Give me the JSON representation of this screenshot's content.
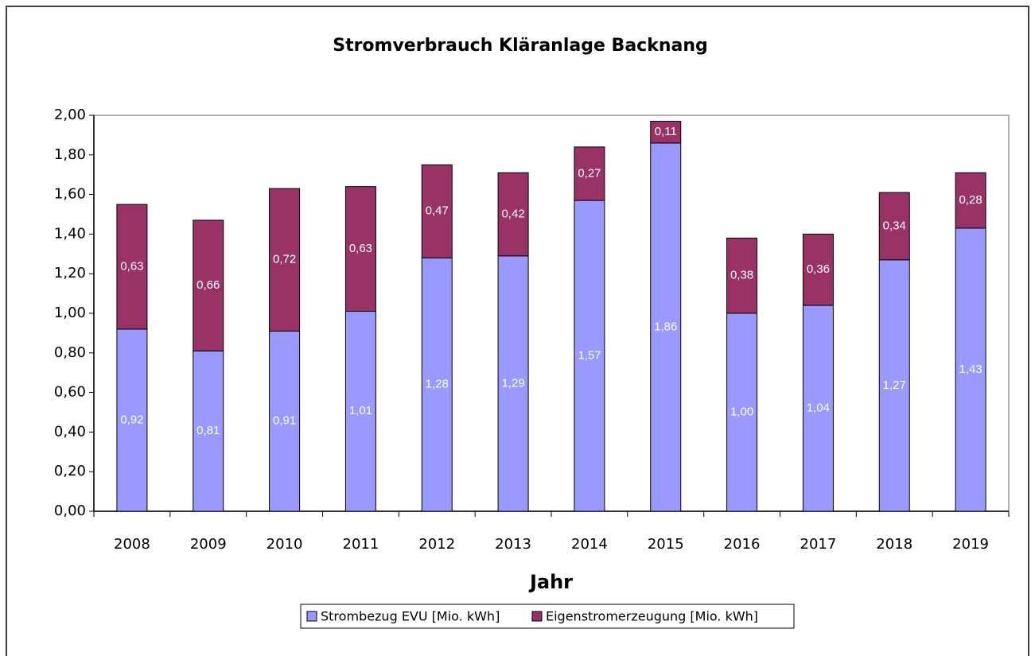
{
  "chart_data": {
    "type": "bar",
    "stacked": true,
    "title": "Stromverbrauch Kläranlage Backnang",
    "x_label": "Jahr",
    "categories": [
      "2008",
      "2009",
      "2010",
      "2011",
      "2012",
      "2013",
      "2014",
      "2015",
      "2016",
      "2017",
      "2018",
      "2019"
    ],
    "series": [
      {
        "name": "Strombezug EVU [Mio. kWh]",
        "color": "#9999ff",
        "values": [
          0.92,
          0.81,
          0.91,
          1.01,
          1.28,
          1.29,
          1.57,
          1.86,
          1.0,
          1.04,
          1.27,
          1.43
        ],
        "value_labels": [
          "0,92",
          "0,81",
          "0,91",
          "1,01",
          "1,28",
          "1,29",
          "1,57",
          "1,86",
          "1,00",
          "1,04",
          "1,27",
          "1,43"
        ]
      },
      {
        "name": "Eigenstromerzeugung [Mio. kWh]",
        "color": "#993366",
        "values": [
          0.63,
          0.66,
          0.72,
          0.63,
          0.47,
          0.42,
          0.27,
          0.11,
          0.38,
          0.36,
          0.34,
          0.28
        ],
        "value_labels": [
          "0,63",
          "0,66",
          "0,72",
          "0,63",
          "0,47",
          "0,42",
          "0,27",
          "0,11",
          "0,38",
          "0,36",
          "0,34",
          "0,28"
        ]
      }
    ],
    "ylim": [
      0,
      2
    ],
    "yticks": [
      {
        "value": 0,
        "label": "0,00"
      },
      {
        "value": 0.2,
        "label": "0,20"
      },
      {
        "value": 0.4,
        "label": "0,40"
      },
      {
        "value": 0.6,
        "label": "0,60"
      },
      {
        "value": 0.8,
        "label": "0,80"
      },
      {
        "value": 1,
        "label": "1,00"
      },
      {
        "value": 1.2,
        "label": "1,20"
      },
      {
        "value": 1.4,
        "label": "1,40"
      },
      {
        "value": 1.6,
        "label": "1,60"
      },
      {
        "value": 1.8,
        "label": "1,80"
      },
      {
        "value": 2,
        "label": "2,00"
      }
    ],
    "grid": false,
    "legend": "bottom"
  }
}
